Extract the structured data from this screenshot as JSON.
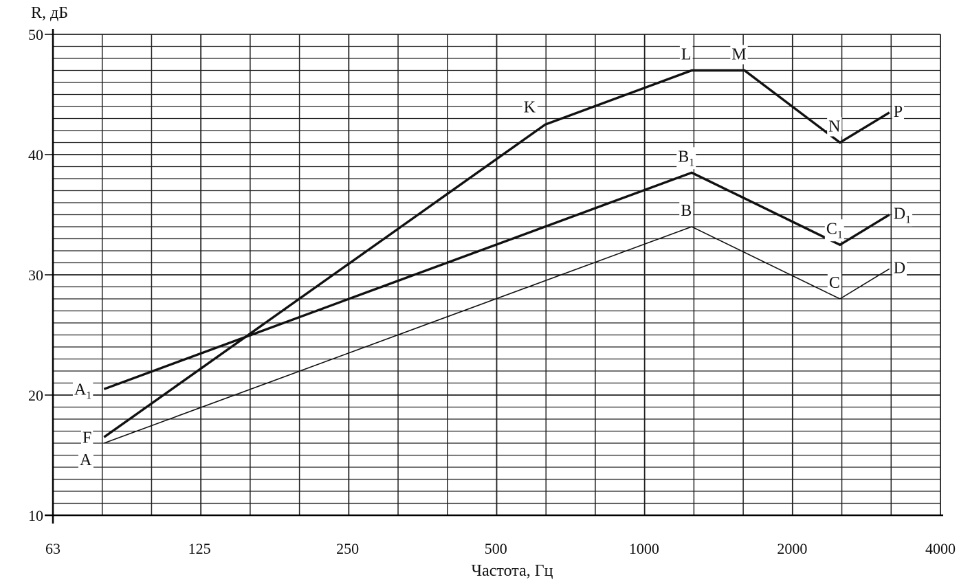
{
  "chart_data": {
    "type": "line",
    "ylabel": "R, дБ",
    "xlabel": "Частота,  Гц",
    "x_scale": "log2",
    "xlim": [
      63,
      4000
    ],
    "ylim": [
      10,
      50
    ],
    "x_ticks": [
      {
        "value": 63,
        "label": "63"
      },
      {
        "value": 125,
        "label": "125"
      },
      {
        "value": 250,
        "label": "250"
      },
      {
        "value": 500,
        "label": "500"
      },
      {
        "value": 1000,
        "label": "1000"
      },
      {
        "value": 2000,
        "label": "2000"
      },
      {
        "value": 4000,
        "label": "4000"
      }
    ],
    "y_ticks": [
      {
        "value": 10,
        "label": "10"
      },
      {
        "value": 20,
        "label": "20"
      },
      {
        "value": 30,
        "label": "30"
      },
      {
        "value": 40,
        "label": "40"
      },
      {
        "value": 50,
        "label": "50"
      }
    ],
    "grid": true,
    "series": [
      {
        "style": "thin",
        "points": [
          {
            "x": 80,
            "y": 16,
            "label": "A",
            "sub": "",
            "label_pos": "below-left"
          },
          {
            "x": 1250,
            "y": 34,
            "label": "B",
            "sub": "",
            "label_pos": "above"
          },
          {
            "x": 2500,
            "y": 28,
            "label": "C",
            "sub": "",
            "label_pos": "above"
          },
          {
            "x": 3150,
            "y": 30.5,
            "label": "D",
            "sub": "",
            "label_pos": "right"
          }
        ]
      },
      {
        "style": "thick",
        "points": [
          {
            "x": 80,
            "y": 20.5,
            "label": "A",
            "sub": "1",
            "label_pos": "left"
          },
          {
            "x": 1250,
            "y": 38.5,
            "label": "B",
            "sub": "1",
            "label_pos": "above"
          },
          {
            "x": 2500,
            "y": 32.5,
            "label": "C",
            "sub": "1",
            "label_pos": "above"
          },
          {
            "x": 3150,
            "y": 35,
            "label": "D",
            "sub": "1",
            "label_pos": "right"
          }
        ]
      },
      {
        "style": "thick",
        "points": [
          {
            "x": 80,
            "y": 16.5,
            "label": "F",
            "sub": "",
            "label_pos": "left"
          },
          {
            "x": 630,
            "y": 42.5,
            "label": "K",
            "sub": "",
            "label_pos": "above-left"
          },
          {
            "x": 1250,
            "y": 47,
            "label": "L",
            "sub": "",
            "label_pos": "above"
          },
          {
            "x": 1600,
            "y": 47,
            "label": "M",
            "sub": "",
            "label_pos": "above"
          },
          {
            "x": 2500,
            "y": 41,
            "label": "N",
            "sub": "",
            "label_pos": "above"
          },
          {
            "x": 3150,
            "y": 43.5,
            "label": "P",
            "sub": "",
            "label_pos": "right"
          }
        ]
      }
    ]
  }
}
